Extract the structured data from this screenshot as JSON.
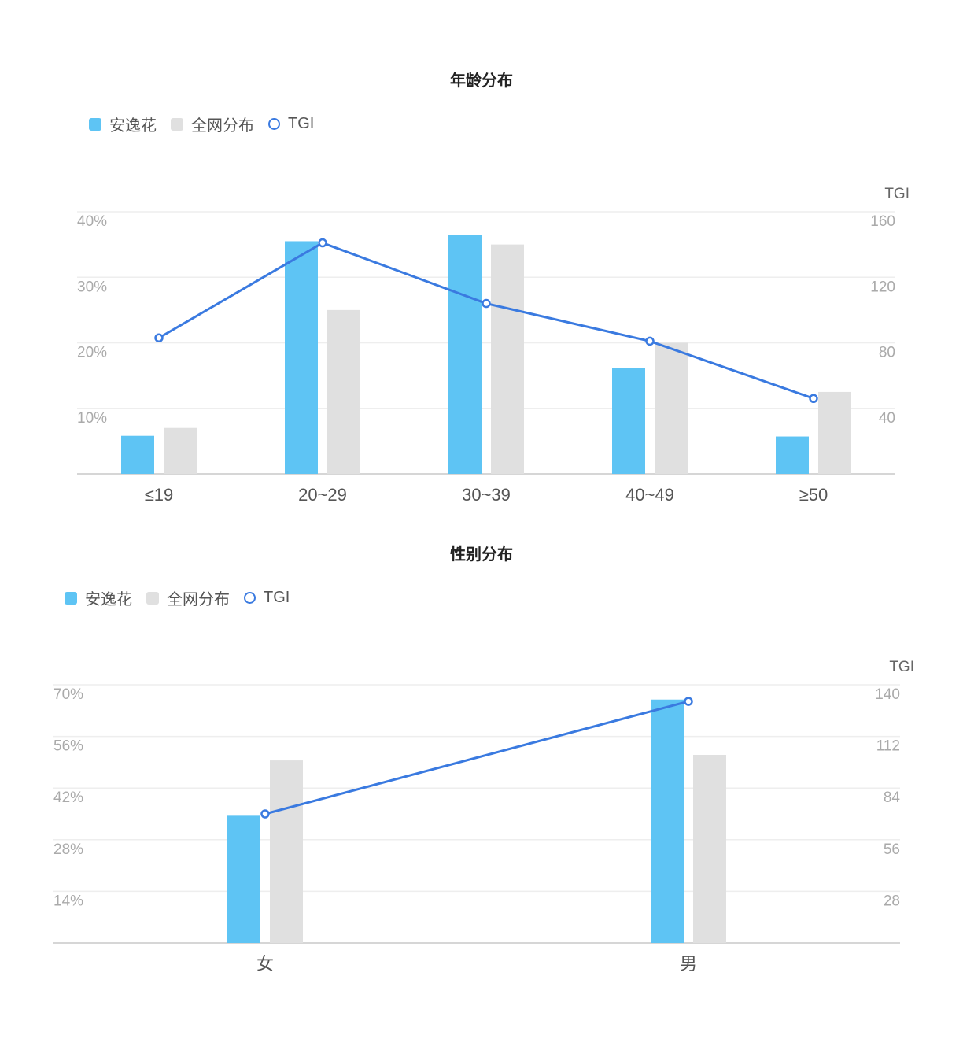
{
  "chart_data": [
    {
      "type": "bar",
      "title": "年龄分布",
      "categories": [
        "≤19",
        "20~29",
        "30~39",
        "40~49",
        "≥50"
      ],
      "series": [
        {
          "name": "安逸花",
          "kind": "bar",
          "axis": "left",
          "values": [
            5.8,
            35.5,
            36.5,
            16.1,
            5.7
          ]
        },
        {
          "name": "全网分布",
          "kind": "bar",
          "axis": "left",
          "values": [
            7.0,
            25.0,
            35.0,
            20.0,
            12.5
          ]
        },
        {
          "name": "TGI",
          "kind": "line",
          "axis": "right",
          "values": [
            83,
            141,
            104,
            81,
            46
          ]
        }
      ],
      "y_left": {
        "min": 0,
        "max": 40,
        "ticks": [
          "40%",
          "30%",
          "20%",
          "10%"
        ],
        "tick_values": [
          40,
          30,
          20,
          10
        ]
      },
      "y_right": {
        "label": "TGI",
        "min": 0,
        "max": 160,
        "ticks": [
          "160",
          "120",
          "80",
          "40"
        ],
        "tick_values": [
          160,
          120,
          80,
          40
        ]
      },
      "legend_position": "top-left",
      "grid": true,
      "colors": {
        "primary": "#5ec4f4",
        "secondary": "#e0e0e0",
        "line": "#3a7ae0"
      }
    },
    {
      "type": "bar",
      "title": "性别分布",
      "categories": [
        "女",
        "男"
      ],
      "series": [
        {
          "name": "安逸花",
          "kind": "bar",
          "axis": "left",
          "values": [
            34.5,
            66.0
          ]
        },
        {
          "name": "全网分布",
          "kind": "bar",
          "axis": "left",
          "values": [
            49.5,
            51.0
          ]
        },
        {
          "name": "TGI",
          "kind": "line",
          "axis": "right",
          "values": [
            70,
            131
          ]
        }
      ],
      "y_left": {
        "min": 0,
        "max": 70,
        "ticks": [
          "70%",
          "56%",
          "42%",
          "28%",
          "14%"
        ],
        "tick_values": [
          70,
          56,
          42,
          28,
          14
        ]
      },
      "y_right": {
        "label": "TGI",
        "min": 0,
        "max": 140,
        "ticks": [
          "140",
          "112",
          "84",
          "56",
          "28"
        ],
        "tick_values": [
          140,
          112,
          84,
          56,
          28
        ]
      },
      "legend_position": "top-left",
      "grid": true,
      "colors": {
        "primary": "#5ec4f4",
        "secondary": "#e0e0e0",
        "line": "#3a7ae0"
      }
    }
  ]
}
